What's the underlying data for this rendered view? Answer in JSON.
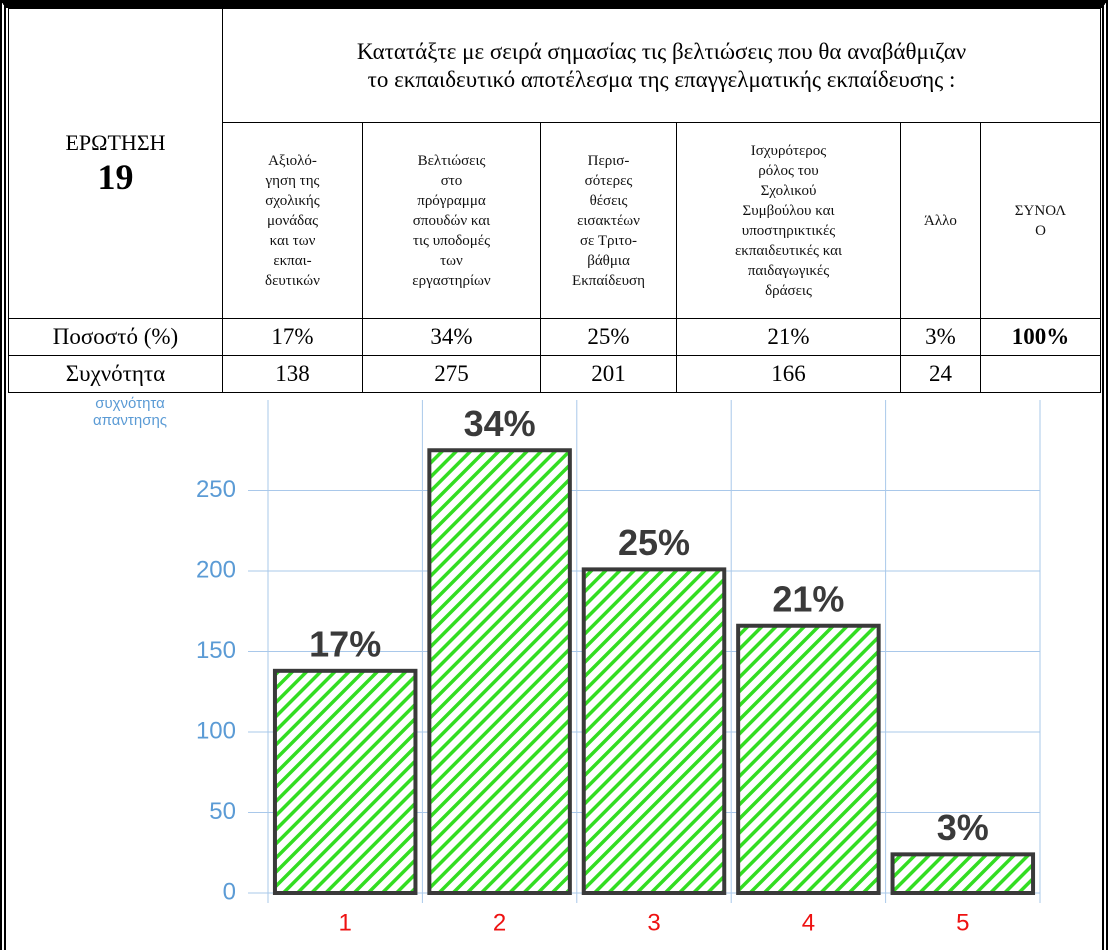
{
  "question": {
    "label": "ΕΡΩΤΗΣΗ",
    "number": "19"
  },
  "table": {
    "heading": [
      "Κατατάξτε με σειρά σημασίας τις βελτιώσεις   που θα αναβάθμιζαν",
      "το εκπαιδευτικό αποτέλεσμα  της  επαγγελματικής εκπαίδευσης :"
    ],
    "columns": [
      {
        "lines": [
          "Αξιολό-",
          "γηση της",
          "σχολικής",
          "μονάδας",
          "και των",
          "εκπαι-",
          "δευτικών"
        ]
      },
      {
        "lines": [
          "Βελτιώσεις",
          "στο",
          "πρόγραμμα",
          "σπουδών και",
          "τις υποδομές",
          "των",
          "εργαστηρίων"
        ]
      },
      {
        "lines": [
          "Περισ-",
          "σότερες",
          "θέσεις",
          "εισακτέων",
          "σε Τριτο-",
          "βάθμια",
          "Εκπαίδευση"
        ]
      },
      {
        "lines": [
          "Ισχυρότερος",
          "ρόλος του",
          "Σχολικού",
          "Συμβούλου και",
          "υποστηρικτικές",
          "εκπαιδευτικές και",
          "παιδαγωγικές",
          "δράσεις"
        ]
      },
      {
        "lines": [
          "Άλλο"
        ]
      },
      {
        "lines": [
          "ΣΥΝΟΛ",
          "Ο"
        ]
      }
    ],
    "percent_row": {
      "label": "Ποσοστό (%)",
      "values": [
        "17%",
        "34%",
        "25%",
        "21%",
        "3%"
      ],
      "total": "100%"
    },
    "frequency_row": {
      "label": "Συχνότητα"
    }
  },
  "chart_data": {
    "type": "bar",
    "y_label": [
      "συχνότητα",
      "απαντησης"
    ],
    "categories": [
      "1",
      "2",
      "3",
      "4",
      "5"
    ],
    "values": [
      138,
      275,
      201,
      166,
      24
    ],
    "color": "#33dd22",
    "ylim": [
      0,
      300
    ],
    "yticks": [
      0,
      50,
      100,
      150,
      200,
      250
    ],
    "grid": true
  }
}
